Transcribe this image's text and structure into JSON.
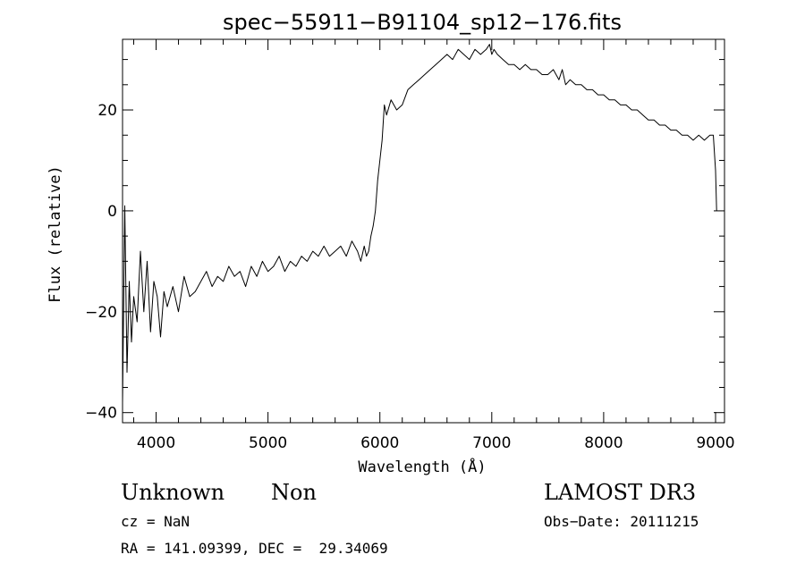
{
  "chart_data": {
    "type": "line",
    "title": "spec−55911−B91104_sp12−176.fits",
    "xlabel": "Wavelength (Å)",
    "ylabel": "Flux (relative)",
    "xlim": [
      3700,
      9080
    ],
    "ylim": [
      -42,
      34
    ],
    "x_ticks": [
      4000,
      5000,
      6000,
      7000,
      8000,
      9000
    ],
    "x_tick_labels": [
      "4000",
      "5000",
      "6000",
      "7000",
      "8000",
      "9000"
    ],
    "y_ticks": [
      -40,
      -20,
      0,
      20
    ],
    "y_tick_labels": [
      "−40",
      "−20",
      "0",
      "20"
    ],
    "grid": false,
    "series": [
      {
        "x": [
          3700,
          3720,
          3740,
          3760,
          3780,
          3800,
          3830,
          3860,
          3890,
          3920,
          3950,
          3980,
          4010,
          4040,
          4070,
          4100,
          4150,
          4200,
          4250,
          4300,
          4350,
          4400,
          4450,
          4500,
          4550,
          4600,
          4650,
          4700,
          4750,
          4800,
          4850,
          4900,
          4950,
          5000,
          5050,
          5100,
          5150,
          5200,
          5250,
          5300,
          5350,
          5400,
          5450,
          5500,
          5550,
          5600,
          5650,
          5700,
          5750,
          5800,
          5830,
          5860,
          5880,
          5900,
          5920,
          5940,
          5960,
          5980,
          6000,
          6020,
          6040,
          6060,
          6100,
          6150,
          6200,
          6250,
          6300,
          6350,
          6400,
          6450,
          6500,
          6550,
          6600,
          6650,
          6700,
          6750,
          6800,
          6850,
          6900,
          6950,
          6980,
          7000,
          7020,
          7050,
          7100,
          7150,
          7200,
          7250,
          7300,
          7350,
          7400,
          7450,
          7500,
          7550,
          7600,
          7630,
          7660,
          7700,
          7750,
          7800,
          7850,
          7900,
          7950,
          8000,
          8050,
          8100,
          8150,
          8200,
          8250,
          8300,
          8350,
          8400,
          8450,
          8500,
          8550,
          8600,
          8650,
          8700,
          8750,
          8800,
          8850,
          8900,
          8950,
          8980,
          9000,
          9010
        ],
        "values": [
          -38,
          1,
          -32,
          -14,
          -26,
          -17,
          -22,
          -8,
          -20,
          -10,
          -24,
          -14,
          -17,
          -25,
          -16,
          -19,
          -15,
          -20,
          -13,
          -17,
          -16,
          -14,
          -12,
          -15,
          -13,
          -14,
          -11,
          -13,
          -12,
          -15,
          -11,
          -13,
          -10,
          -12,
          -11,
          -9,
          -12,
          -10,
          -11,
          -9,
          -10,
          -8,
          -9,
          -7,
          -9,
          -8,
          -7,
          -9,
          -6,
          -8,
          -10,
          -7,
          -9,
          -8,
          -5,
          -3,
          0,
          6,
          10,
          14,
          21,
          19,
          22,
          20,
          21,
          24,
          25,
          26,
          27,
          28,
          29,
          30,
          31,
          30,
          32,
          31,
          30,
          32,
          31,
          32,
          33,
          31,
          32,
          31,
          30,
          29,
          29,
          28,
          29,
          28,
          28,
          27,
          27,
          28,
          26,
          28,
          25,
          26,
          25,
          25,
          24,
          24,
          23,
          23,
          22,
          22,
          21,
          21,
          20,
          20,
          19,
          18,
          18,
          17,
          17,
          16,
          16,
          15,
          15,
          14,
          15,
          14,
          15,
          15,
          8,
          0
        ]
      }
    ]
  },
  "annotations": {
    "object_class": "Unknown",
    "object_subclass": "Non",
    "survey": "LAMOST DR3",
    "redshift": "cz = NaN",
    "obs_date": "Obs−Date: 20111215",
    "coords": "RA = 141.09399, DEC =  29.34069"
  }
}
